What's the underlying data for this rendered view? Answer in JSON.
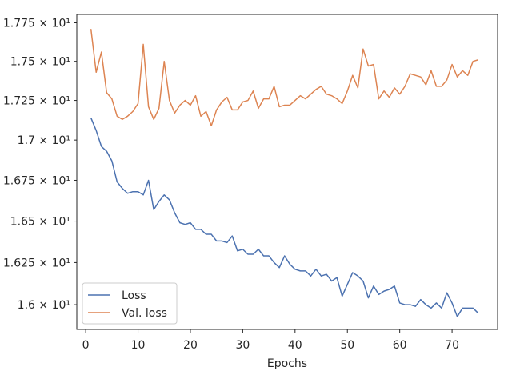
{
  "chart_data": {
    "type": "line",
    "title": "",
    "xlabel": "Epochs",
    "ylabel": "",
    "xlim": [
      -1.7,
      78.7
    ],
    "ylim": [
      15.855,
      17.805
    ],
    "x_ticks": [
      0,
      10,
      20,
      30,
      40,
      50,
      60,
      70
    ],
    "y_ticks": [
      {
        "value": 16.0,
        "label": "1.6 × 10¹"
      },
      {
        "value": 16.25,
        "label": "1.625 × 10¹"
      },
      {
        "value": 16.5,
        "label": "1.65 × 10¹"
      },
      {
        "value": 16.75,
        "label": "1.675 × 10¹"
      },
      {
        "value": 17.0,
        "label": "1.7 × 10¹"
      },
      {
        "value": 17.25,
        "label": "1.725 × 10¹"
      },
      {
        "value": 17.5,
        "label": "1.75 × 10¹"
      },
      {
        "value": 17.75,
        "label": "1.775 × 10¹"
      }
    ],
    "y_scale": "log",
    "grid": false,
    "legend_position": "lower-left",
    "x": [
      1,
      2,
      3,
      4,
      5,
      6,
      7,
      8,
      9,
      10,
      11,
      12,
      13,
      14,
      15,
      16,
      17,
      18,
      19,
      20,
      21,
      22,
      23,
      24,
      25,
      26,
      27,
      28,
      29,
      30,
      31,
      32,
      33,
      34,
      35,
      36,
      37,
      38,
      39,
      40,
      41,
      42,
      43,
      44,
      45,
      46,
      47,
      48,
      49,
      50,
      51,
      52,
      53,
      54,
      55,
      56,
      57,
      58,
      59,
      60,
      61,
      62,
      63,
      64,
      65,
      66,
      67,
      68,
      69,
      70,
      71,
      72,
      73,
      74,
      75
    ],
    "series": [
      {
        "name": "Loss",
        "color": "#4c72b0",
        "values": [
          17.14,
          17.06,
          16.96,
          16.93,
          16.87,
          16.74,
          16.7,
          16.67,
          16.68,
          16.68,
          16.66,
          16.75,
          16.57,
          16.62,
          16.66,
          16.63,
          16.55,
          16.49,
          16.48,
          16.49,
          16.45,
          16.45,
          16.42,
          16.42,
          16.38,
          16.38,
          16.37,
          16.41,
          16.32,
          16.33,
          16.3,
          16.3,
          16.33,
          16.29,
          16.29,
          16.25,
          16.22,
          16.29,
          16.24,
          16.21,
          16.2,
          16.2,
          16.17,
          16.21,
          16.17,
          16.18,
          16.14,
          16.16,
          16.05,
          16.12,
          16.19,
          16.17,
          16.14,
          16.04,
          16.11,
          16.06,
          16.08,
          16.09,
          16.11,
          16.01,
          16.0,
          16.0,
          15.99,
          16.03,
          16.0,
          15.98,
          16.01,
          15.98,
          16.07,
          16.01,
          15.93,
          15.98,
          15.98,
          15.98,
          15.95
        ]
      },
      {
        "name": "Val. loss",
        "color": "#dd8452",
        "values": [
          17.71,
          17.43,
          17.56,
          17.3,
          17.26,
          17.15,
          17.13,
          17.15,
          17.18,
          17.23,
          17.61,
          17.21,
          17.13,
          17.2,
          17.5,
          17.25,
          17.17,
          17.22,
          17.25,
          17.22,
          17.28,
          17.15,
          17.18,
          17.09,
          17.19,
          17.24,
          17.27,
          17.19,
          17.19,
          17.24,
          17.25,
          17.31,
          17.2,
          17.26,
          17.26,
          17.34,
          17.21,
          17.22,
          17.22,
          17.25,
          17.28,
          17.26,
          17.29,
          17.32,
          17.34,
          17.29,
          17.28,
          17.26,
          17.23,
          17.31,
          17.41,
          17.33,
          17.58,
          17.47,
          17.48,
          17.26,
          17.31,
          17.27,
          17.33,
          17.29,
          17.34,
          17.42,
          17.41,
          17.4,
          17.35,
          17.44,
          17.34,
          17.34,
          17.38,
          17.48,
          17.4,
          17.44,
          17.41,
          17.5,
          17.51
        ]
      }
    ]
  }
}
